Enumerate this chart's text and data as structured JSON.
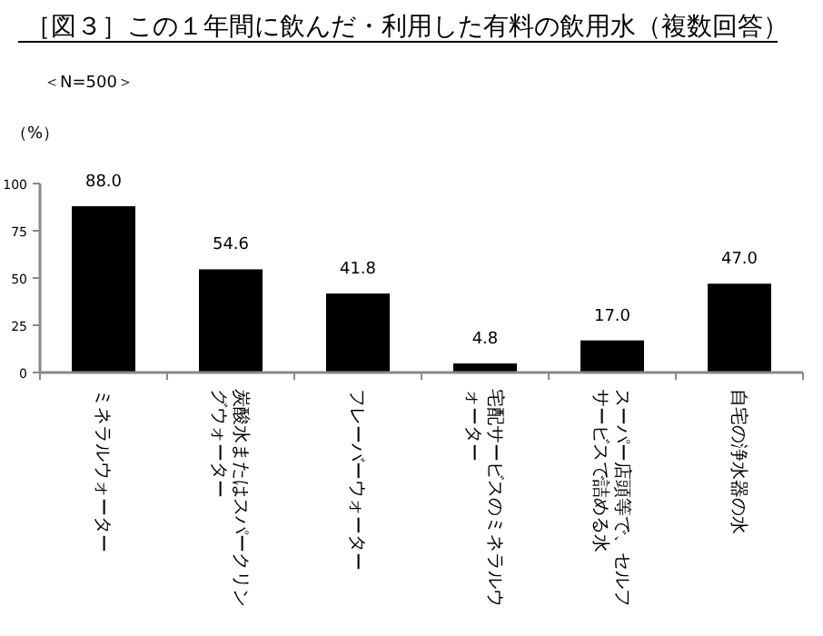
{
  "chart_data": {
    "type": "bar",
    "title": "［図３］この１年間に飲んだ・利用した有料の飲用水（複数回答）",
    "annotations": [
      "＜N=500＞"
    ],
    "ylabel": "（%）",
    "categories": [
      "ミネラルウォーター",
      "炭酸水またはスパークリングウォーター",
      "フレーバーウォーター",
      "宅配サービスのミネラルウォーター",
      "スーパー店頭等で、セルフサービスで詰める水",
      "自宅の浄水器の水"
    ],
    "values": [
      88.0,
      54.6,
      41.8,
      4.8,
      17.0,
      47.0
    ],
    "value_labels": [
      "88.0",
      "54.6",
      "41.8",
      "4.8",
      "17.0",
      "47.0"
    ],
    "color": "#000000",
    "ylim": [
      0,
      100
    ],
    "yticks": [
      0,
      25,
      50,
      75,
      100
    ],
    "grid": false
  }
}
